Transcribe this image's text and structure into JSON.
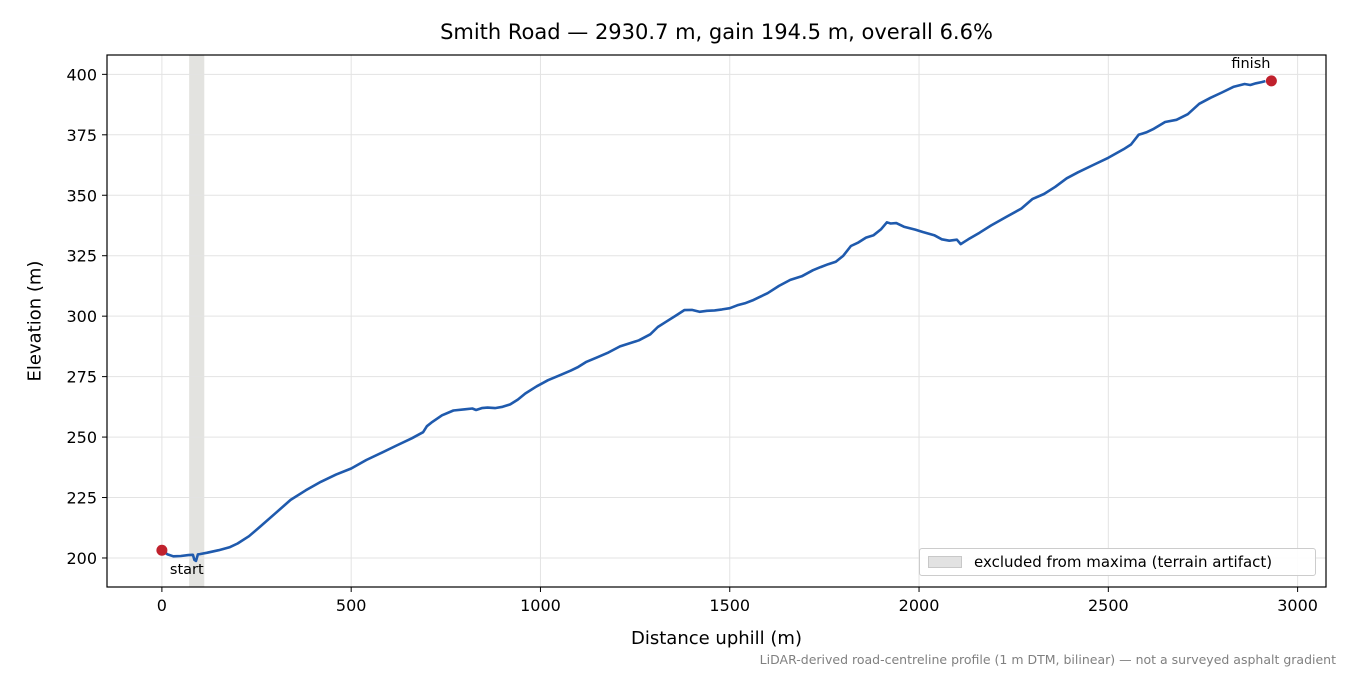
{
  "chart_data": {
    "type": "line",
    "title": "Smith Road — 2930.7 m, gain 194.5 m, overall 6.6%",
    "xlabel": "Distance uphill (m)",
    "ylabel": "Elevation (m)",
    "xlim": [
      -145,
      3075
    ],
    "ylim": [
      188,
      408
    ],
    "xticks": [
      0,
      500,
      1000,
      1500,
      2000,
      2500,
      3000
    ],
    "yticks": [
      200,
      225,
      250,
      275,
      300,
      325,
      350,
      375,
      400
    ],
    "grid": true,
    "line_color": "#1f5aad",
    "marker_color": "#c0212d",
    "band_color": "#d9d9d6",
    "excluded_band": {
      "x_start": 72,
      "x_end": 112,
      "legend_label": "excluded from maxima (terrain artifact)"
    },
    "legend_location": "lower right",
    "series": [
      {
        "x": [
          0,
          15,
          30,
          50,
          70,
          82,
          86,
          90,
          95,
          100,
          120,
          150,
          180,
          200,
          230,
          260,
          300,
          340,
          380,
          420,
          460,
          500,
          540,
          580,
          620,
          660,
          690,
          700,
          712,
          740,
          770,
          800,
          820,
          830,
          845,
          860,
          880,
          900,
          920,
          940,
          960,
          990,
          1020,
          1050,
          1080,
          1100,
          1120,
          1150,
          1180,
          1210,
          1240,
          1260,
          1290,
          1310,
          1330,
          1360,
          1380,
          1400,
          1420,
          1440,
          1460,
          1480,
          1500,
          1520,
          1540,
          1560,
          1580,
          1600,
          1630,
          1660,
          1690,
          1720,
          1740,
          1760,
          1780,
          1800,
          1820,
          1840,
          1860,
          1880,
          1900,
          1915,
          1925,
          1940,
          1960,
          1990,
          2010,
          2040,
          2060,
          2080,
          2100,
          2110,
          2120,
          2130,
          2160,
          2190,
          2230,
          2270,
          2300,
          2330,
          2360,
          2390,
          2420,
          2460,
          2500,
          2540,
          2560,
          2580,
          2600,
          2620,
          2650,
          2680,
          2710,
          2740,
          2770,
          2800,
          2830,
          2860,
          2875,
          2890,
          2905,
          2915
        ],
        "y": [
          203,
          201.5,
          200.7,
          200.8,
          201.2,
          201.3,
          199.2,
          198.8,
          201.5,
          201.6,
          202.2,
          203.2,
          204.5,
          206,
          209,
          213,
          218.5,
          224,
          228,
          231.5,
          234.5,
          237,
          240.5,
          243.5,
          246.5,
          249.5,
          252,
          254.5,
          256,
          259,
          261,
          261.5,
          261.8,
          261.2,
          262,
          262.2,
          262,
          262.5,
          263.5,
          265.5,
          268,
          271,
          273.5,
          275.5,
          277.5,
          279,
          281,
          283,
          285,
          287.5,
          289,
          290,
          292.5,
          295.5,
          297.5,
          300.5,
          302.5,
          302.6,
          301.8,
          302.2,
          302.4,
          302.8,
          303.3,
          304.5,
          305.3,
          306.5,
          308,
          309.5,
          312.5,
          315,
          316.5,
          319,
          320.3,
          321.5,
          322.5,
          325,
          329,
          330.5,
          332.5,
          333.5,
          336,
          338.8,
          338.3,
          338.5,
          337,
          335.8,
          334.8,
          333.5,
          331.8,
          331.2,
          331.6,
          329.8,
          330.8,
          331.8,
          334.5,
          337.5,
          341,
          344.5,
          348.5,
          350.5,
          353.5,
          357,
          359.5,
          362.5,
          365.5,
          369,
          371,
          375,
          376,
          377.5,
          380.3,
          381.2,
          383.5,
          387.8,
          390.3,
          392.5,
          394.8,
          396,
          395.6,
          396.3,
          396.8,
          397.2
        ]
      }
    ],
    "points": [
      {
        "label": "start",
        "x": 0,
        "y": 203.2
      },
      {
        "label": "finish",
        "x": 2930.7,
        "y": 397.3
      }
    ]
  },
  "footnote": "LiDAR-derived road-centreline profile (1 m DTM, bilinear) — not a surveyed asphalt gradient"
}
